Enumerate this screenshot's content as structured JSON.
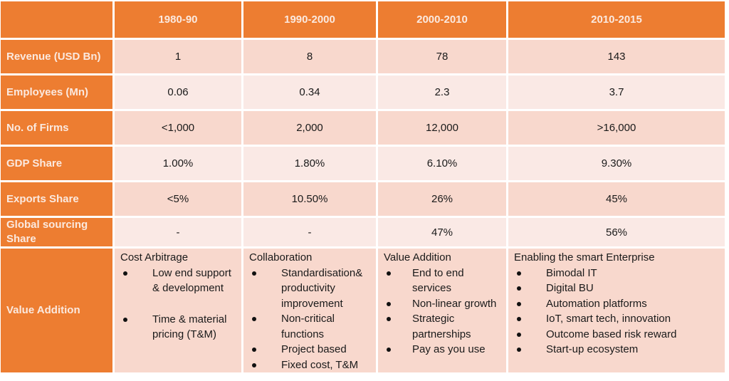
{
  "table": {
    "columns": [
      "",
      "1980-90",
      "1990-2000",
      "2000-2010",
      "2010-2015"
    ],
    "rows": [
      {
        "label": "Revenue (USD Bn)",
        "values": [
          "1",
          "8",
          "78",
          "143"
        ]
      },
      {
        "label": "Employees (Mn)",
        "values": [
          "0.06",
          "0.34",
          "2.3",
          "3.7"
        ]
      },
      {
        "label": "No. of Firms",
        "values": [
          "<1,000",
          "2,000",
          "12,000",
          ">16,000"
        ]
      },
      {
        "label": "GDP Share",
        "values": [
          "1.00%",
          "1.80%",
          "6.10%",
          "9.30%"
        ]
      },
      {
        "label": "Exports Share",
        "values": [
          "<5%",
          "10.50%",
          "26%",
          "45%"
        ]
      },
      {
        "label": "Global sourcing Share",
        "values": [
          "-",
          "-",
          "47%",
          "56%"
        ]
      }
    ],
    "value_addition": {
      "label": "Value Addition",
      "cells": [
        {
          "title": "Cost Arbitrage",
          "items": [
            "Low end support & development",
            "Time & material pricing (T&M)"
          ]
        },
        {
          "title": "Collaboration",
          "items": [
            "Standardisation& productivity improvement",
            "Non-critical functions",
            "Project based",
            "Fixed cost, T&M"
          ]
        },
        {
          "title": "Value Addition",
          "items": [
            "End to end services",
            "Non-linear growth",
            "Strategic partnerships",
            "Pay as you use"
          ]
        },
        {
          "title": "Enabling the smart Enterprise",
          "items": [
            "Bimodal IT",
            "Digital BU",
            "Automation platforms",
            "IoT, smart tech, innovation",
            "Outcome based risk reward",
            "Start-up ecosystem"
          ]
        }
      ]
    }
  },
  "colors": {
    "header_orange": "#ed7d31",
    "header_text": "#fbe9df",
    "row_dark": "#f8d8cd",
    "row_light": "#fae9e5"
  }
}
